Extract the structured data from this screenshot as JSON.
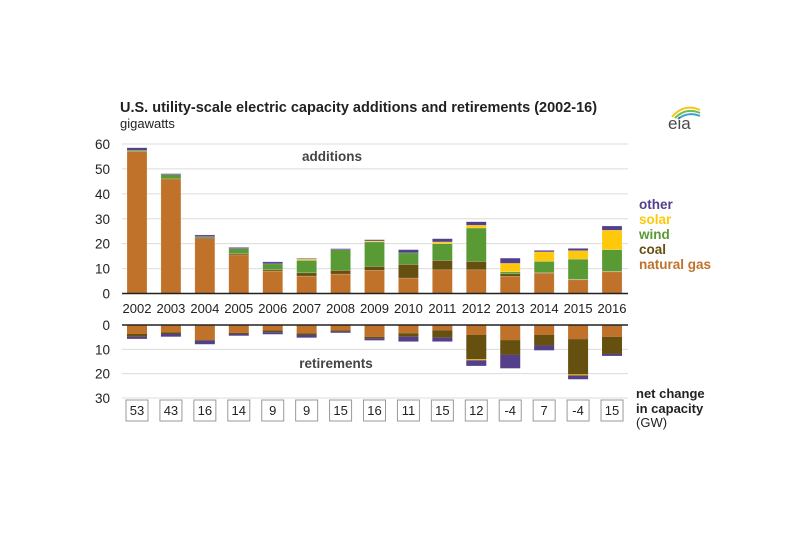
{
  "chart_data": {
    "type": "bar",
    "stacked": true,
    "title": "U.S. utility-scale electric capacity additions and retirements (2002-16)",
    "unit_label": "gigawatts",
    "logo_text": "eia",
    "categories": [
      "2002",
      "2003",
      "2004",
      "2005",
      "2006",
      "2007",
      "2008",
      "2009",
      "2010",
      "2011",
      "2012",
      "2013",
      "2014",
      "2015",
      "2016"
    ],
    "additions": {
      "label": "additions",
      "ylim": [
        0,
        60
      ],
      "yticks": [
        0,
        10,
        20,
        30,
        40,
        50,
        60
      ],
      "series": [
        {
          "name": "natural gas",
          "values": [
            57,
            46,
            22,
            15.5,
            9,
            7,
            7.8,
            9.3,
            6.2,
            9.5,
            9.5,
            6.9,
            8.2,
            5.5,
            8.7
          ]
        },
        {
          "name": "coal",
          "values": [
            0,
            0,
            0.5,
            0.5,
            0.5,
            1.3,
            1.5,
            1.6,
            5.5,
            3.8,
            3.4,
            1.0,
            0.2,
            0.2,
            0.2
          ]
        },
        {
          "name": "wind",
          "values": [
            0.5,
            1.7,
            0.3,
            2.0,
            2.4,
            5.0,
            8.3,
            9.8,
            4.6,
            6.7,
            13.4,
            0.8,
            4.5,
            8.1,
            8.7
          ]
        },
        {
          "name": "solar",
          "values": [
            0,
            0,
            0,
            0,
            0,
            0.5,
            0,
            0.4,
            0,
            0.7,
            1.1,
            3.4,
            3.8,
            3.4,
            7.8
          ]
        },
        {
          "name": "other",
          "values": [
            1.0,
            0.4,
            0.7,
            0.5,
            0.8,
            0.3,
            0.4,
            0.5,
            1.3,
            1.3,
            1.4,
            2.1,
            0.6,
            0.9,
            1.7
          ]
        }
      ]
    },
    "retirements": {
      "label": "retirements",
      "ylim": [
        0,
        30
      ],
      "yticks": [
        0,
        10,
        20,
        30
      ],
      "series": [
        {
          "name": "natural gas",
          "values": [
            3.7,
            3.0,
            6.2,
            3.2,
            2.2,
            3.4,
            2.2,
            4.9,
            3.4,
            2.2,
            4.1,
            6.2,
            4.1,
            5.8,
            4.9
          ]
        },
        {
          "name": "coal",
          "values": [
            1.1,
            0.7,
            0.2,
            0.5,
            0.8,
            0.7,
            0.5,
            0.6,
            1.4,
            3.0,
            10.0,
            6.1,
            4.3,
            14.5,
            7.0
          ]
        },
        {
          "name": "solar",
          "values": [
            0,
            0,
            0,
            0,
            0,
            0,
            0,
            0,
            0,
            0,
            0.4,
            0,
            0,
            0.4,
            0
          ]
        },
        {
          "name": "other",
          "values": [
            0.9,
            1.1,
            1.5,
            0.7,
            0.8,
            1.1,
            0.5,
            0.8,
            2.0,
            1.6,
            2.3,
            5.5,
            2.0,
            1.6,
            0.8
          ]
        }
      ]
    },
    "net_change": {
      "label_lines": [
        "net change",
        "in capacity",
        "(GW)"
      ],
      "values": [
        "53",
        "43",
        "16",
        "14",
        "9",
        "9",
        "15",
        "16",
        "11",
        "15",
        "12",
        "-4",
        "7",
        "-4",
        "15"
      ]
    },
    "legend": {
      "placement": "right",
      "items": [
        {
          "name": "other",
          "color": "#54408a"
        },
        {
          "name": "solar",
          "color": "#ffc80a"
        },
        {
          "name": "wind",
          "color": "#5a9a35"
        },
        {
          "name": "coal",
          "color": "#66500f"
        },
        {
          "name": "natural gas",
          "color": "#c0722b"
        }
      ]
    },
    "grid": true
  }
}
